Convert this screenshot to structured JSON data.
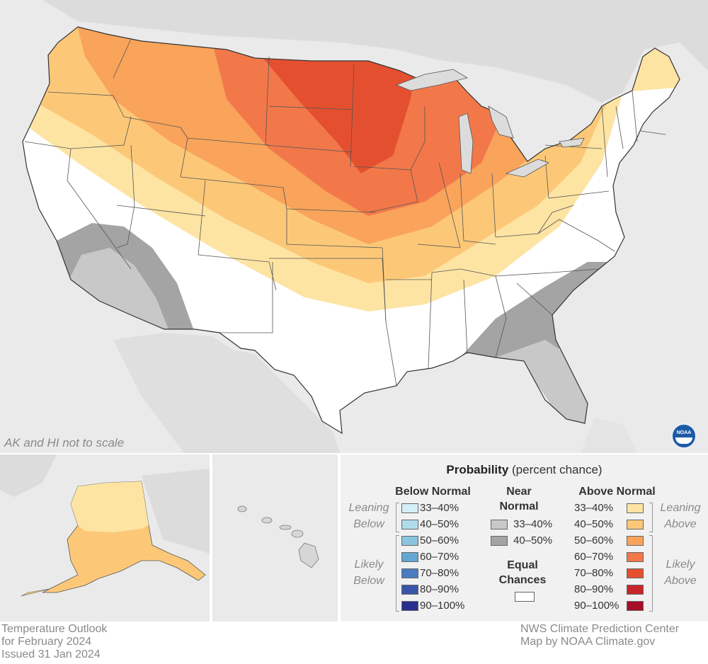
{
  "title": [
    "Temperature Outlook",
    "for February 2024",
    "Issued 31 Jan 2024"
  ],
  "credits": [
    "NWS Climate Prediction Center",
    "Map by NOAA Climate.gov"
  ],
  "scale_note": "AK and HI not to scale",
  "logo_text": "NOAA",
  "legend": {
    "title_bold": "Probability",
    "title_rest": " (percent chance)",
    "below": {
      "header": "Below Normal",
      "leaning_label": [
        "Leaning",
        "Below"
      ],
      "likely_label": [
        "Likely",
        "Below"
      ],
      "items": [
        {
          "label": "33–40%",
          "color": "#d5eff7"
        },
        {
          "label": "40–50%",
          "color": "#b1dcec"
        },
        {
          "label": "50–60%",
          "color": "#8ac4df"
        },
        {
          "label": "60–70%",
          "color": "#64a7d2"
        },
        {
          "label": "70–80%",
          "color": "#4a7cc1"
        },
        {
          "label": "80–90%",
          "color": "#3955a8"
        },
        {
          "label": "90–100%",
          "color": "#2a2f8f"
        }
      ]
    },
    "near": {
      "header": [
        "Near",
        "Normal"
      ],
      "items": [
        {
          "label": "33–40%",
          "color": "#c8c8c8"
        },
        {
          "label": "40–50%",
          "color": "#a4a4a4"
        }
      ]
    },
    "equal": {
      "header": [
        "Equal",
        "Chances"
      ],
      "color": "#ffffff"
    },
    "above": {
      "header": "Above Normal",
      "leaning_label": [
        "Leaning",
        "Above"
      ],
      "likely_label": [
        "Likely",
        "Above"
      ],
      "items": [
        {
          "label": "33–40%",
          "color": "#fde4a3"
        },
        {
          "label": "40–50%",
          "color": "#fcc878"
        },
        {
          "label": "50–60%",
          "color": "#f9a35b"
        },
        {
          "label": "60–70%",
          "color": "#f2784a"
        },
        {
          "label": "70–80%",
          "color": "#e4502f"
        },
        {
          "label": "80–90%",
          "color": "#c8262b"
        },
        {
          "label": "90–100%",
          "color": "#a50f2a"
        }
      ]
    }
  },
  "map_colors": {
    "background": "#eaeaea",
    "land_outside": "#dcdcdc",
    "equal_chances": "#ffffff",
    "state_lines": "#555555"
  }
}
